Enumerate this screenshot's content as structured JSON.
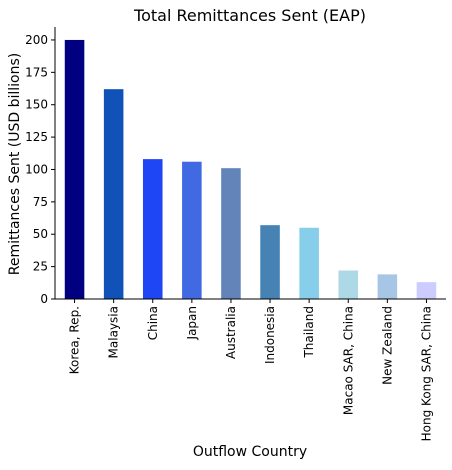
{
  "chart_data": {
    "type": "bar",
    "title": "Total Remittances Sent (EAP)",
    "xlabel": "Outflow Country",
    "ylabel": "Remittances Sent (USD billions)",
    "ylim": [
      0,
      210
    ],
    "yticks": [
      0,
      25,
      50,
      75,
      100,
      125,
      150,
      175,
      200
    ],
    "grid": false,
    "categories": [
      "Korea, Rep.",
      "Malaysia",
      "China",
      "Japan",
      "Australia",
      "Indonesia",
      "Thailand",
      "Macao SAR, China",
      "New Zealand",
      "Hong Kong SAR, China"
    ],
    "values": [
      200,
      162,
      108,
      106,
      101,
      57,
      55,
      22,
      19,
      13
    ],
    "colors": [
      "#000080",
      "#1152b8",
      "#1e46f5",
      "#4169e1",
      "#6384b8",
      "#4682b4",
      "#87ceeb",
      "#add8e6",
      "#a7c6e6",
      "#ccccff"
    ]
  }
}
